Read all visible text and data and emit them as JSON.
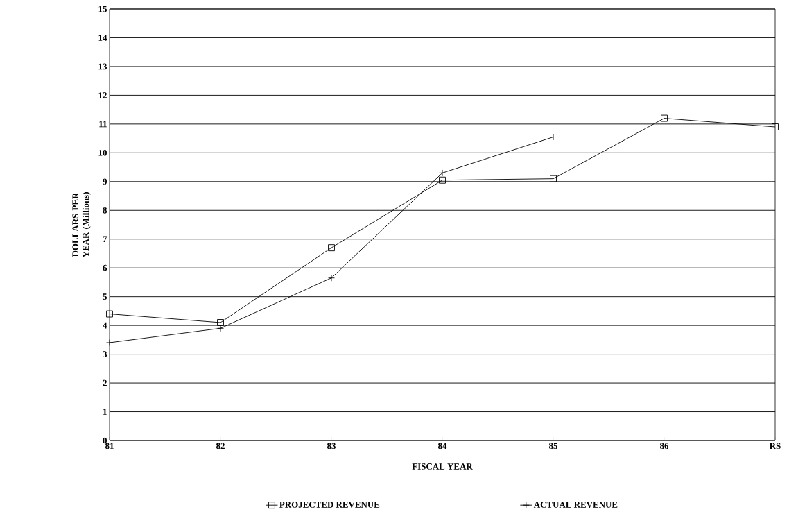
{
  "chart_data": {
    "type": "line",
    "xlabel": "FISCAL YEAR",
    "ylabel": "DOLLARS PER YEAR (Millions)",
    "categories": [
      "81",
      "82",
      "83",
      "84",
      "85",
      "86",
      "RS"
    ],
    "series": [
      {
        "name": "PROJECTED REVENUE",
        "color": "#000000",
        "marker": "square",
        "values": [
          4.4,
          4.1,
          6.7,
          9.05,
          9.1,
          11.2,
          10.9
        ]
      },
      {
        "name": "ACTUAL REVENUE",
        "color": "#000000",
        "marker": "cross",
        "values": [
          3.4,
          3.9,
          5.65,
          9.3,
          10.55,
          null,
          null
        ]
      }
    ],
    "ylim": [
      0,
      15
    ],
    "yticks": [
      0,
      1,
      2,
      3,
      4,
      5,
      6,
      7,
      8,
      9,
      10,
      11,
      12,
      13,
      14,
      15
    ],
    "grid": "y",
    "legend": "bottom",
    "line_style": "solid"
  }
}
